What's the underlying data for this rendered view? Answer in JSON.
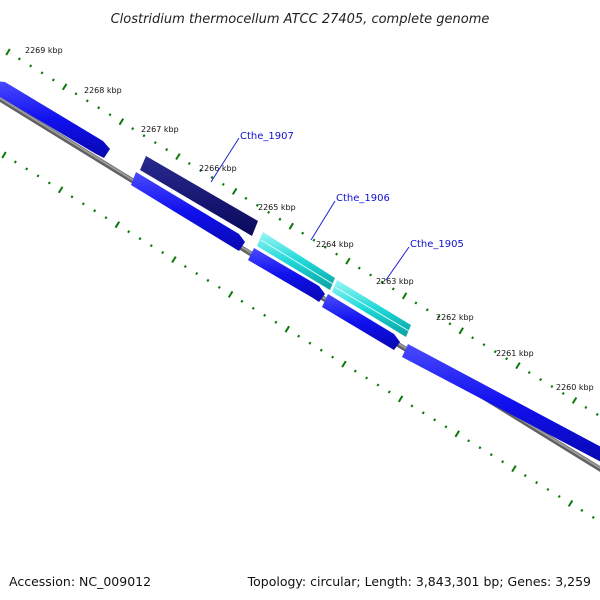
{
  "title": "Clostridium thermocellum ATCC 27405, complete genome",
  "footer": {
    "accession": "Accession: NC_009012",
    "topology": "Topology: circular; Length: 3,843,301 bp; Genes: 3,259"
  },
  "scale_labels": [
    "2269 kbp",
    "2268 kbp",
    "2267 kbp",
    "2266 kbp",
    "2265 kbp",
    "2264 kbp",
    "2263 kbp",
    "2262 kbp",
    "2261 kbp",
    "2260 kbp"
  ],
  "gene_labels": [
    "Cthe_1907",
    "Cthe_1906",
    "Cthe_1905"
  ],
  "colors": {
    "forward_gene": "#1414ee",
    "selected_gene": "#0b0b70",
    "highlighted_gene": "#18d8d8",
    "backbone": "#808080",
    "tick": "#0a7a0a",
    "gene_label": "#1010d0"
  }
}
